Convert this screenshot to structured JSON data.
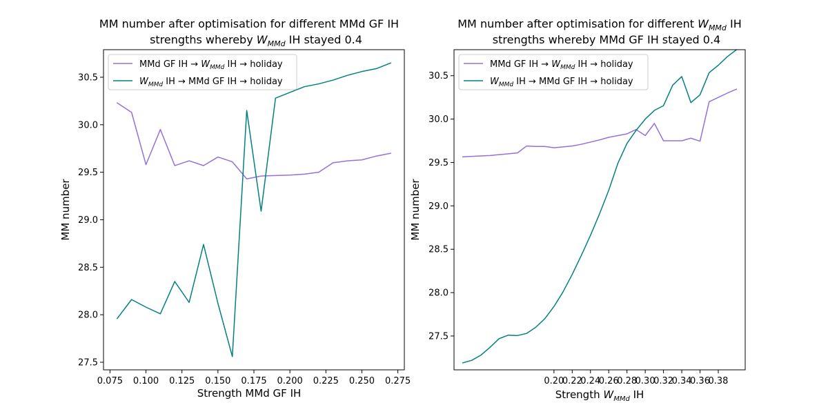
{
  "chart_data": [
    {
      "type": "line",
      "title_line1": "MM number after optimisation for different MMd GF IH",
      "title_line2_pre": "strengths whereby ",
      "title_line2_var": "W",
      "title_line2_sub": "MMd",
      "title_line2_post": " IH stayed 0.4",
      "xlabel": "Strength MMd GF IH",
      "ylabel": "MM number",
      "xlim": [
        0.0705,
        0.2795
      ],
      "ylim": [
        27.42,
        30.79
      ],
      "xticks": [
        0.075,
        0.1,
        0.125,
        0.15,
        0.175,
        0.2,
        0.225,
        0.25,
        0.275
      ],
      "xtick_labels": [
        "0.075",
        "0.100",
        "0.125",
        "0.150",
        "0.175",
        "0.200",
        "0.225",
        "0.250",
        "0.275"
      ],
      "yticks": [
        27.5,
        28.0,
        28.5,
        29.0,
        29.5,
        30.0,
        30.5
      ],
      "ytick_labels": [
        "27.5",
        "28.0",
        "28.5",
        "29.0",
        "29.5",
        "30.0",
        "30.5"
      ],
      "legend_position": "upper-left",
      "x": [
        0.08,
        0.09,
        0.1,
        0.11,
        0.12,
        0.13,
        0.14,
        0.15,
        0.16,
        0.17,
        0.18,
        0.19,
        0.2,
        0.21,
        0.22,
        0.23,
        0.24,
        0.25,
        0.26,
        0.27
      ],
      "series": [
        {
          "legend": {
            "pre": "MMd GF IH → ",
            "var": "W",
            "sub": "MMd",
            "post": " IH → holiday"
          },
          "color": "#9370DB",
          "values": [
            30.23,
            30.13,
            29.58,
            29.95,
            29.57,
            29.62,
            29.57,
            29.66,
            29.61,
            29.43,
            29.46,
            29.465,
            29.47,
            29.48,
            29.5,
            29.6,
            29.62,
            29.63,
            29.67,
            29.7
          ]
        },
        {
          "legend": {
            "pre": "",
            "var": "W",
            "sub": "MMd",
            "post": " IH → MMd GF IH → holiday"
          },
          "color": "#008080",
          "values": [
            27.96,
            28.16,
            28.08,
            28.01,
            28.35,
            28.13,
            28.74,
            28.12,
            27.56,
            30.15,
            29.09,
            30.28,
            30.34,
            30.4,
            30.43,
            30.47,
            30.52,
            30.56,
            30.59,
            30.65
          ]
        }
      ]
    },
    {
      "type": "line",
      "title_line1_pre": "MM number after optimisation for different ",
      "title_line1_var": "W",
      "title_line1_sub": "MMd",
      "title_line1_post": " IH",
      "title_line2": "strengths whereby MMd GF IH stayed 0.4",
      "xlabel_pre": "Strength ",
      "xlabel_var": "W",
      "xlabel_sub": "MMd",
      "xlabel_post": " IH",
      "ylabel": "MM number",
      "xlim": [
        0.0905,
        0.4095
      ],
      "ylim": [
        27.11,
        30.8
      ],
      "xticks": [
        0.2,
        0.22,
        0.24,
        0.26,
        0.28,
        0.3,
        0.32,
        0.34,
        0.36,
        0.38
      ],
      "xtick_labels": [
        "0.20",
        "0.22",
        "0.24",
        "0.26",
        "0.28",
        "0.30",
        "0.32",
        "0.34",
        "0.36",
        "0.38"
      ],
      "yticks": [
        27.5,
        28.0,
        28.5,
        29.0,
        29.5,
        30.0,
        30.5
      ],
      "ytick_labels": [
        "27.5",
        "28.0",
        "28.5",
        "29.0",
        "29.5",
        "30.0",
        "30.5"
      ],
      "legend_position": "upper-left",
      "x": [
        0.1,
        0.11,
        0.12,
        0.13,
        0.14,
        0.15,
        0.16,
        0.17,
        0.18,
        0.19,
        0.2,
        0.21,
        0.22,
        0.23,
        0.24,
        0.25,
        0.26,
        0.27,
        0.28,
        0.29,
        0.3,
        0.31,
        0.32,
        0.33,
        0.34,
        0.35,
        0.36,
        0.37,
        0.38,
        0.39,
        0.4
      ],
      "series": [
        {
          "legend": {
            "pre": "MMd GF IH → ",
            "var": "W",
            "sub": "MMd",
            "post": " IH → holiday"
          },
          "color": "#9370DB",
          "values": [
            29.565,
            29.57,
            29.575,
            29.58,
            29.59,
            29.6,
            29.61,
            29.69,
            29.685,
            29.685,
            29.67,
            29.68,
            29.69,
            29.71,
            29.735,
            29.76,
            29.79,
            29.81,
            29.83,
            29.88,
            29.81,
            29.95,
            29.75,
            29.75,
            29.75,
            29.78,
            29.745,
            30.2,
            30.25,
            30.3,
            30.345
          ]
        },
        {
          "legend": {
            "pre": "",
            "var": "W",
            "sub": "MMd",
            "post": " IH → MMd GF IH → holiday"
          },
          "color": "#008080",
          "values": [
            27.19,
            27.22,
            27.28,
            27.37,
            27.47,
            27.51,
            27.505,
            27.53,
            27.6,
            27.7,
            27.84,
            28.01,
            28.21,
            28.43,
            28.66,
            28.91,
            29.18,
            29.49,
            29.72,
            29.87,
            30.0,
            30.1,
            30.155,
            30.39,
            30.49,
            30.19,
            30.28,
            30.535,
            30.62,
            30.72,
            30.8
          ]
        }
      ]
    }
  ]
}
